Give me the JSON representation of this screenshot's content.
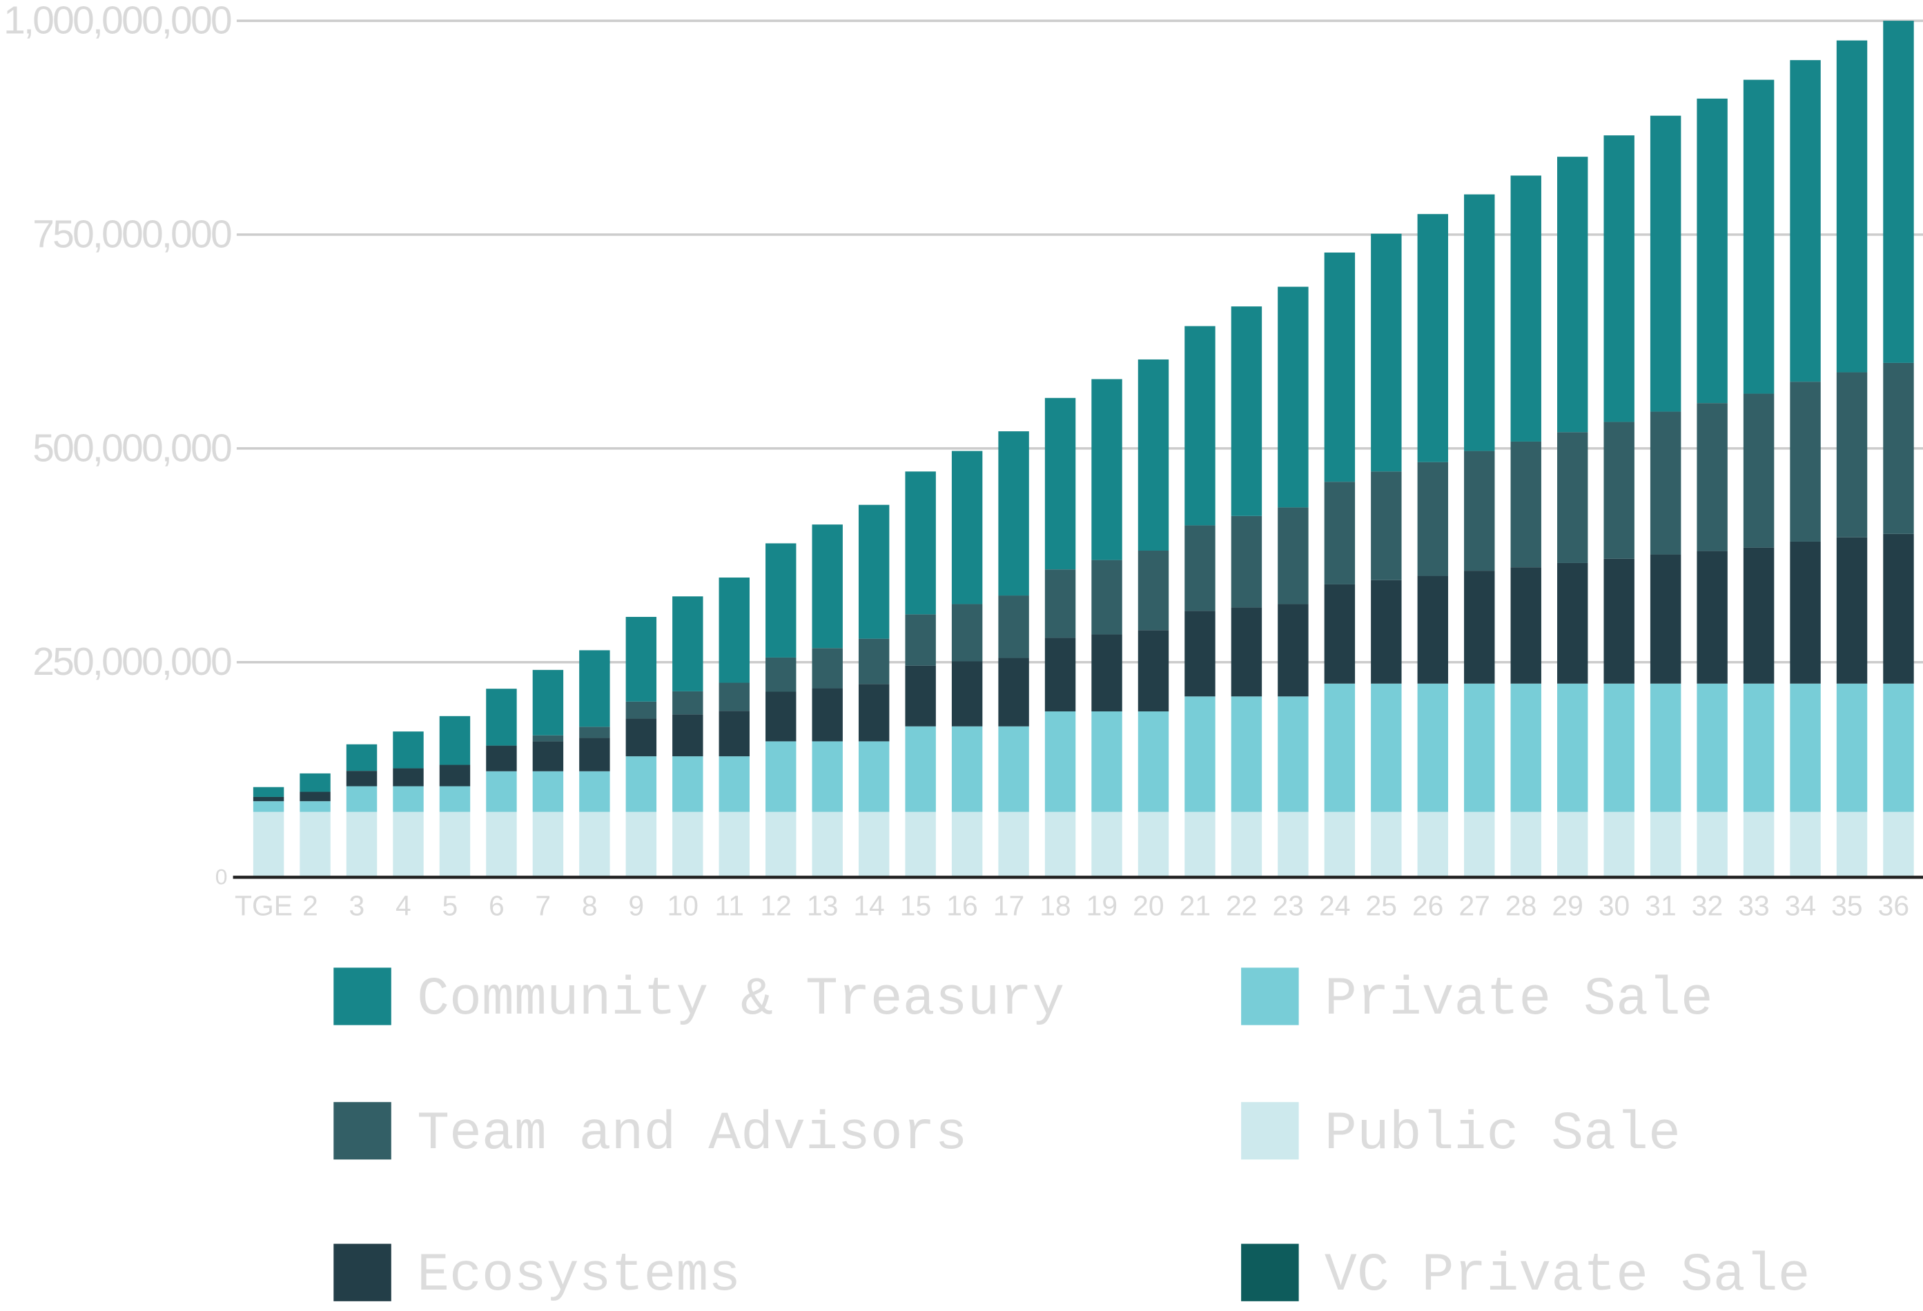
{
  "chart_data": {
    "type": "bar",
    "stacked": true,
    "categories": [
      "TGE",
      "2",
      "3",
      "4",
      "5",
      "6",
      "7",
      "8",
      "9",
      "10",
      "11",
      "12",
      "13",
      "14",
      "15",
      "16",
      "17",
      "18",
      "19",
      "20",
      "21",
      "22",
      "23",
      "24",
      "25",
      "26",
      "27",
      "28",
      "29",
      "30",
      "31",
      "32",
      "33",
      "34",
      "35",
      "36"
    ],
    "series": [
      {
        "name": "Community & Treasury",
        "color": "#17868a",
        "values": [
          11500000,
          21500000,
          31000000,
          43000000,
          57000000,
          66500000,
          76500000,
          89500000,
          99000000,
          111000000,
          123000000,
          133500000,
          144500000,
          156500000,
          167000000,
          179000000,
          192000000,
          200500000,
          211500000,
          223500000,
          233000000,
          245000000,
          258000000,
          268000000,
          278000000,
          290000000,
          300000000,
          311000000,
          322000000,
          335000000,
          346000000,
          356000000,
          367000000,
          376000000,
          388000000,
          400000000
        ]
      },
      {
        "name": "Private Sale",
        "color": "#78cdd7",
        "values": [
          12500000,
          12500000,
          30000000,
          30000000,
          30000000,
          47500000,
          47500000,
          47500000,
          65000000,
          65000000,
          65000000,
          82500000,
          82500000,
          82500000,
          100000000,
          100000000,
          100000000,
          117500000,
          117500000,
          117500000,
          135000000,
          135000000,
          135000000,
          150000000,
          150000000,
          150000000,
          150000000,
          150000000,
          150000000,
          150000000,
          150000000,
          150000000,
          150000000,
          150000000,
          150000000,
          150000000
        ]
      },
      {
        "name": "Team and Advisors",
        "color": "#335f66",
        "values": [
          0,
          0,
          0,
          0,
          0,
          0,
          7000000,
          13000000,
          20000000,
          27000000,
          33000000,
          40000000,
          47000000,
          53000000,
          60000000,
          67000000,
          73000000,
          80000000,
          87000000,
          93000000,
          100000000,
          107000000,
          113000000,
          120000000,
          127000000,
          133000000,
          140000000,
          147000000,
          153000000,
          160000000,
          167000000,
          173000000,
          180000000,
          187000000,
          193000000,
          200000000
        ]
      },
      {
        "name": "Public Sale",
        "color": "#cde9ed",
        "values": [
          75000000,
          75000000,
          75000000,
          75000000,
          75000000,
          75000000,
          75000000,
          75000000,
          75000000,
          75000000,
          75000000,
          75000000,
          75000000,
          75000000,
          75000000,
          75000000,
          75000000,
          75000000,
          75000000,
          75000000,
          75000000,
          75000000,
          75000000,
          75000000,
          75000000,
          75000000,
          75000000,
          75000000,
          75000000,
          75000000,
          75000000,
          75000000,
          75000000,
          75000000,
          75000000,
          75000000
        ]
      },
      {
        "name": "Ecosystems",
        "color": "#233e48",
        "values": [
          5000000,
          11000000,
          18000000,
          21000000,
          25000000,
          30000000,
          35000000,
          39000000,
          44000000,
          49000000,
          53000000,
          58000000,
          62000000,
          67000000,
          71000000,
          76000000,
          80000000,
          86000000,
          90000000,
          95000000,
          100000000,
          104000000,
          108000000,
          116000000,
          121000000,
          126000000,
          132000000,
          136000000,
          141000000,
          146000000,
          151000000,
          155000000,
          159000000,
          166000000,
          171000000,
          175000000
        ]
      },
      {
        "name": "VC Private Sale",
        "color": "#0e5c5c",
        "values": [
          0,
          0,
          0,
          0,
          0,
          0,
          0,
          0,
          0,
          0,
          0,
          0,
          0,
          0,
          0,
          0,
          0,
          0,
          0,
          0,
          0,
          0,
          0,
          0,
          0,
          0,
          0,
          0,
          0,
          0,
          0,
          0,
          0,
          0,
          0,
          0
        ]
      }
    ],
    "ylim": [
      0,
      1000000000
    ],
    "yticks": [
      0,
      {
        "value": 250000000,
        "label": "250,000,000"
      },
      {
        "value": 500000000,
        "label": "500,000,000"
      },
      {
        "value": 750000000,
        "label": "750,000,000"
      },
      {
        "value": 1000000000,
        "label": "1,000,000,000"
      }
    ],
    "grid": true
  }
}
